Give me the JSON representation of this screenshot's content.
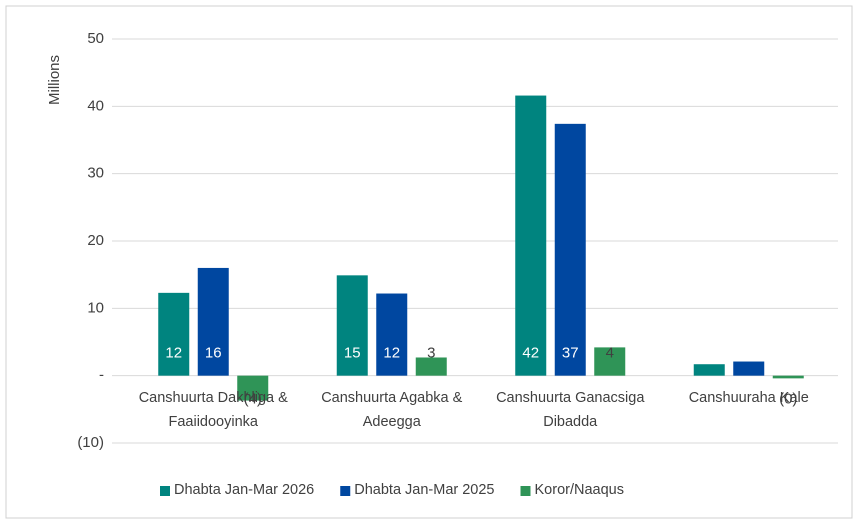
{
  "chart_data": {
    "type": "bar",
    "y_axis_label": "Millions",
    "categories": [
      "Canshuurta Dakhliga & Faaiidooyinka",
      "Canshuurta Agabka & Adeegga",
      "Canshuurta Ganacsiga Dibadda",
      "Canshuuraha Kale"
    ],
    "series": [
      {
        "name": "Dhabta Jan-Mar 2026",
        "color": "#00847f",
        "values": [
          12.3,
          14.9,
          41.6,
          1.7
        ],
        "value_labels": [
          "12",
          "15",
          "42",
          null
        ]
      },
      {
        "name": "Dhabta Jan-Mar 2025",
        "color": "#0047a0",
        "values": [
          16.0,
          12.2,
          37.4,
          2.1
        ],
        "value_labels": [
          "16",
          "12",
          "37",
          null
        ]
      },
      {
        "name": "Koror/Naaqus",
        "color": "#2f9457",
        "values": [
          -3.7,
          2.7,
          4.2,
          -0.4
        ],
        "value_labels": [
          "(4)",
          "3",
          "4",
          "(0)"
        ]
      }
    ],
    "ylim": [
      -10,
      50
    ],
    "yticks": [
      {
        "value": -10,
        "label": "(10)"
      },
      {
        "value": 0,
        "label": "-"
      },
      10,
      20,
      30,
      40,
      50
    ],
    "grid": true,
    "legend": "bottom"
  }
}
